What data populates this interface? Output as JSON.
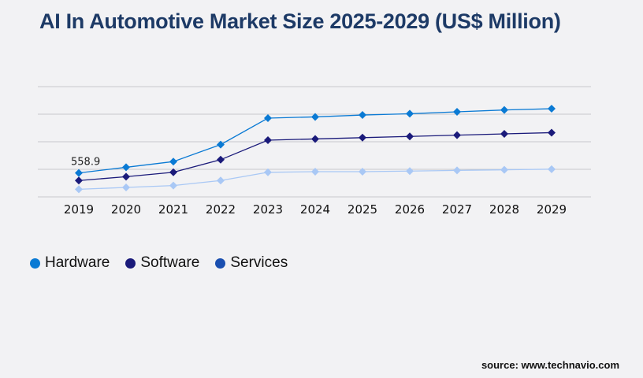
{
  "chart_data": {
    "type": "line",
    "title": "AI In Automotive Market Size 2025-2029 (US$ Million)",
    "x": [
      "2019",
      "2020",
      "2021",
      "2022",
      "2023",
      "2024",
      "2025",
      "2026",
      "2027",
      "2028",
      "2029"
    ],
    "series": [
      {
        "name": "Hardware",
        "color": "#0a7ad4",
        "legend_color": "#0a7ad4",
        "values": [
          558.9,
          691,
          824,
          1221,
          1839,
          1868,
          1912,
          1942,
          1986,
          2030,
          2059
        ]
      },
      {
        "name": "Software",
        "color": "#1a1a7a",
        "legend_color": "#1a1a7a",
        "values": [
          382,
          471,
          574,
          868,
          1324,
          1353,
          1383,
          1412,
          1442,
          1471,
          1500
        ]
      },
      {
        "name": "Services",
        "color": "#a9c8f5",
        "legend_color": "#1a4fb0",
        "values": [
          177,
          221,
          265,
          382,
          574,
          588,
          588,
          603,
          618,
          632,
          647
        ]
      }
    ],
    "data_labels": [
      {
        "series": "Hardware",
        "x": "2019",
        "text": "558.9"
      }
    ],
    "ylim": [
      0,
      2575
    ],
    "grid": true,
    "legend_placement": "bottom-left",
    "marker": "diamond"
  },
  "source": "source: www.technavio.com"
}
